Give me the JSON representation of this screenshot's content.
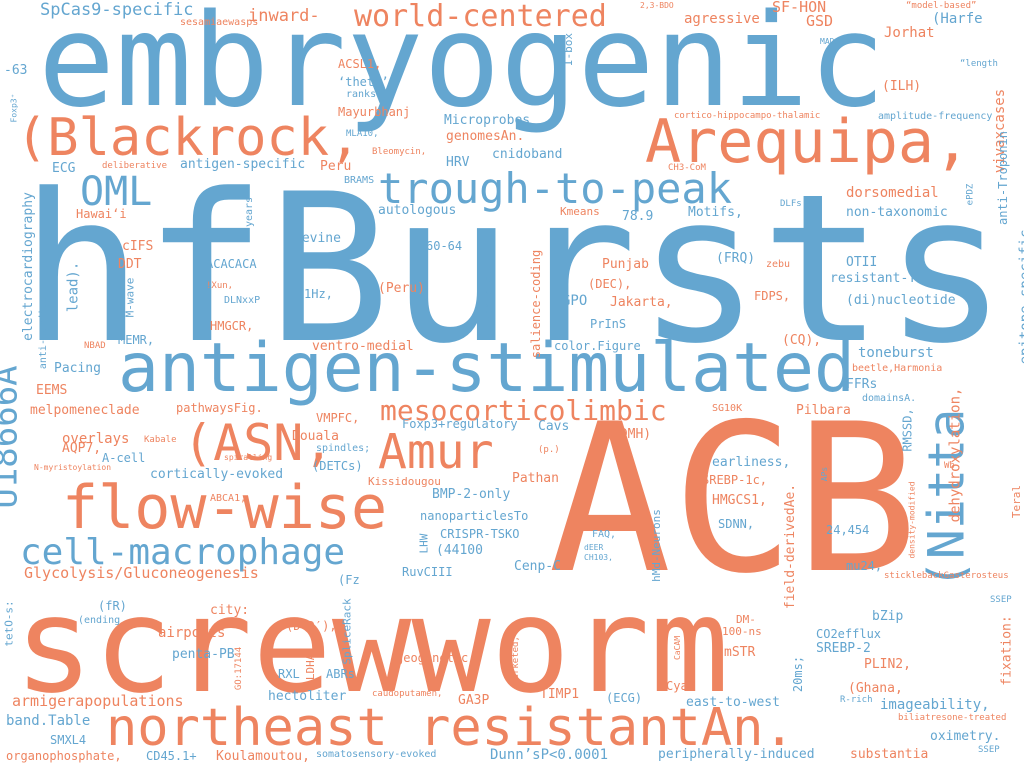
{
  "colors": {
    "blue": "#64a6d0",
    "orange": "#ee8460",
    "background": "#ffffff"
  },
  "words": {
    "embryogenic": "embryogenic",
    "hfbursts": "hfBursts",
    "acb": "ACB",
    "screwworm": "screwworm",
    "antigen_stimulated": "antigen-stimulated",
    "northeast_resistantan": "northeast resistantAn.",
    "blackrock": "(Blackrock,",
    "arequipa": "Arequipa,",
    "flow_wise": "flow-wise",
    "cell_macrophage": "cell-macrophage",
    "trough_to_peak": "trough-to-peak",
    "world_centered": "world-centered",
    "asn": "(ASN,",
    "amur": "Amur",
    "nitta": "(Nitta",
    "u18666a": "U18666A",
    "oml": "OML",
    "mesocorticolimbic": "mesocorticolimbic",
    "glycolysis": "Glycolysis/Gluconeogenesis",
    "armigerapopulations": "armigerapopulations",
    "spcas9": "SpCas9-specific",
    "sesamiaewasps": "sesamiaewasps",
    "inward": "inward-",
    "bdo": "2,3-BDO",
    "agressive": "agressive",
    "sf_hon": "SF-HON",
    "gsd": "GSD",
    "model_based": "“model-based”",
    "harfe": "(Harfe",
    "jorhat": "Jorhat",
    "mada": "MADA",
    "length": "“length",
    "neg63": "-63",
    "acsl1": "ACSL1,",
    "theta": "‘theta’",
    "ranksum": "ranksum)",
    "ibox": "I-box",
    "ilh": "(ILH)",
    "vivaxcases": "vivaxcases",
    "foxp3": "Foxp3⁺",
    "mayurbhanj": "Mayurbhanj",
    "mla10": "MLA10,",
    "microprobes": "Microprobes",
    "cortico": "cortico-hippocampo-thalamic",
    "amplitude_frequency": "amplitude-frequency",
    "anti_troponin": "anti-Troponin",
    "bleomycin": "Bleomycin,",
    "genomesan": "genomesAn.",
    "cnidoband": "cnidoband",
    "ecg": "ECG",
    "deliberative": "deliberative",
    "antigen_specific": "antigen-specific",
    "peru": "Peru",
    "hrv": "HRV",
    "ch3_com": "CH3-CoM",
    "brams": "BRAMS",
    "dorsomedial": "dorsomedial",
    "epdz": "ePDZ",
    "electrocardiography": "electrocardiography",
    "hawaii": "Hawaiʻi",
    "years": "“years",
    "autologous": "autologous",
    "kmeans": "Kmeans",
    "val789": "78.9",
    "motifs": "Motifs,",
    "dlfs": "DLFs",
    "non_taxonomic": "non-taxonomic",
    "levine": "Levine",
    "cifs": "cIFS",
    "val6064": "60-64",
    "otii": "OTII",
    "epitope_specific": "epitope-specific",
    "ddt": "DDT",
    "lead": "lead).",
    "acacaca": "ACACACA",
    "peru_paren": "(Peru)",
    "salience_coding": "salience-coding",
    "punjab": "Punjab",
    "frq": "(FRQ)",
    "zebu": "zebu",
    "resistant_tb": "resistant-TB",
    "xun": "!Xun,",
    "hz1": "1Hz,",
    "m_wave": "M-wave",
    "hsmyo1e": "HsMyo1e,",
    "dec": "(DEC),",
    "dlnxxp": "DLNxxP",
    "gpo": "GPO",
    "jakarta": "Jakarta,",
    "fdps": "FDPS,",
    "dinucleotide": "(di)nucleotide",
    "anti_cardiac": "anti-cardiac",
    "prins": "PrInS",
    "hmgcr": "HMGCR,",
    "memr": "MEMR,",
    "ventro_medial": "ventro-medial",
    "cq": "(CQ),",
    "nbad": "NBAD",
    "color_figure": "color.Figure",
    "toneburst": "toneburst",
    "pacing": "Pacing",
    "beetle_harmonia": "beetle,Harmonia",
    "ffrs": "FFRs",
    "eems": "EEMS",
    "melpomeneclade": "melpomeneclade",
    "pathwaysfig": "pathwaysFig.",
    "sg10k": "SG10K",
    "pilbara": "Pilbara",
    "domainsa": "domainsA.",
    "rmssd": "RMSSD,",
    "overlays": "overlays",
    "vmpfc": "VMPFC,",
    "foxp3_regulatory": "Foxp3+regulatory",
    "cavs": "Cavs",
    "kabale": "Kabale",
    "aqp7": "AQP7,",
    "douala": "Douala",
    "dmh": "(DMH)",
    "dehydroxylation": "dehydroxylation,",
    "a_cell": "A-cell",
    "spindles": "spindles;",
    "spiralling": "spiralling",
    "p_paren": "(p.)",
    "earliness": "earliness,",
    "aps": "APs",
    "wb": "Wb",
    "n_myristoylation": "N-myristoylation",
    "cortically_evoked": "cortically-evoked",
    "detcs": "(DETCs)",
    "kissidougou": "Kissidougou",
    "pathan": "Pathan",
    "srebp1c": "SREBP-1c,",
    "field_derivedae": "field-derivedAe.",
    "hmgcs1": "HMGCS1,",
    "density_modified": "density-modified",
    "teral": "Teral",
    "bmp2": "BMP-2-only",
    "abca1": "ABCA1,",
    "nanoparticlesto": "nanoparticlesTo",
    "sdnn": "SDNN,",
    "hmd_neurons": "hMd-Neurons",
    "val24454": "24,454",
    "faq": "FAQ,",
    "lhw": "LHW",
    "crispr": "CRISPR-TSKO",
    "deer": "dEER",
    "ch103": "CH103,",
    "val44100": "(44100",
    "cenp_c": "Cenp-C",
    "mu24": "mu24,",
    "ruvciii": "RuvCIII",
    "fz": "(Fz",
    "stickleback": "sticklebackGasterosteus",
    "tet_o": "tetO-s:",
    "fr": "(fR)",
    "ending": "(ending",
    "city": "city:",
    "splicerack": "SpliceRack",
    "dm": "DM-",
    "ns100": "100-ns",
    "bzip": "bZip",
    "fixation": "fixation:",
    "ssep": "SSEP",
    "airports": "airports",
    "dd": "(D-D′),",
    "ldha": "LDHA,",
    "marketed": "marketed,",
    "cacam": "CaCAM",
    "co2efflux": "CO2efflux",
    "penta_pb": "penta-PB",
    "gp17144": "GO:17144",
    "rxl": "RXL",
    "geogenetic": "geogenetic",
    "mstr": "mSTR",
    "srebp2": "SREBP-2",
    "plin2": "PLIN2,",
    "ms20": "20ms;",
    "abrs": "ABRs",
    "cyar": "CyaR",
    "ghana": "(Ghana,",
    "hectoliter": "hectoliter",
    "caudoputamen": "caudoputamen,",
    "ga3p": "GA3P",
    "timp1": "TIMP1",
    "ecg_paren": "(ECG)",
    "east_to_west": "east-to-west",
    "r_rich": "R-rich",
    "imageability": "imageability,",
    "biliatresone": "biliatresone-treated",
    "band_table": "band.Table",
    "smxl4": "SMXL4",
    "oximetry": "oximetry.",
    "organophosphate": "organophosphate,",
    "cd45": "CD45.1+",
    "koulamoutou": "Koulamoutou,",
    "somatosensory": "somatosensory-evoked",
    "dunns": "Dunn’sP<0.0001",
    "peripherally": "peripherally-induced",
    "substantia": "substantia"
  }
}
